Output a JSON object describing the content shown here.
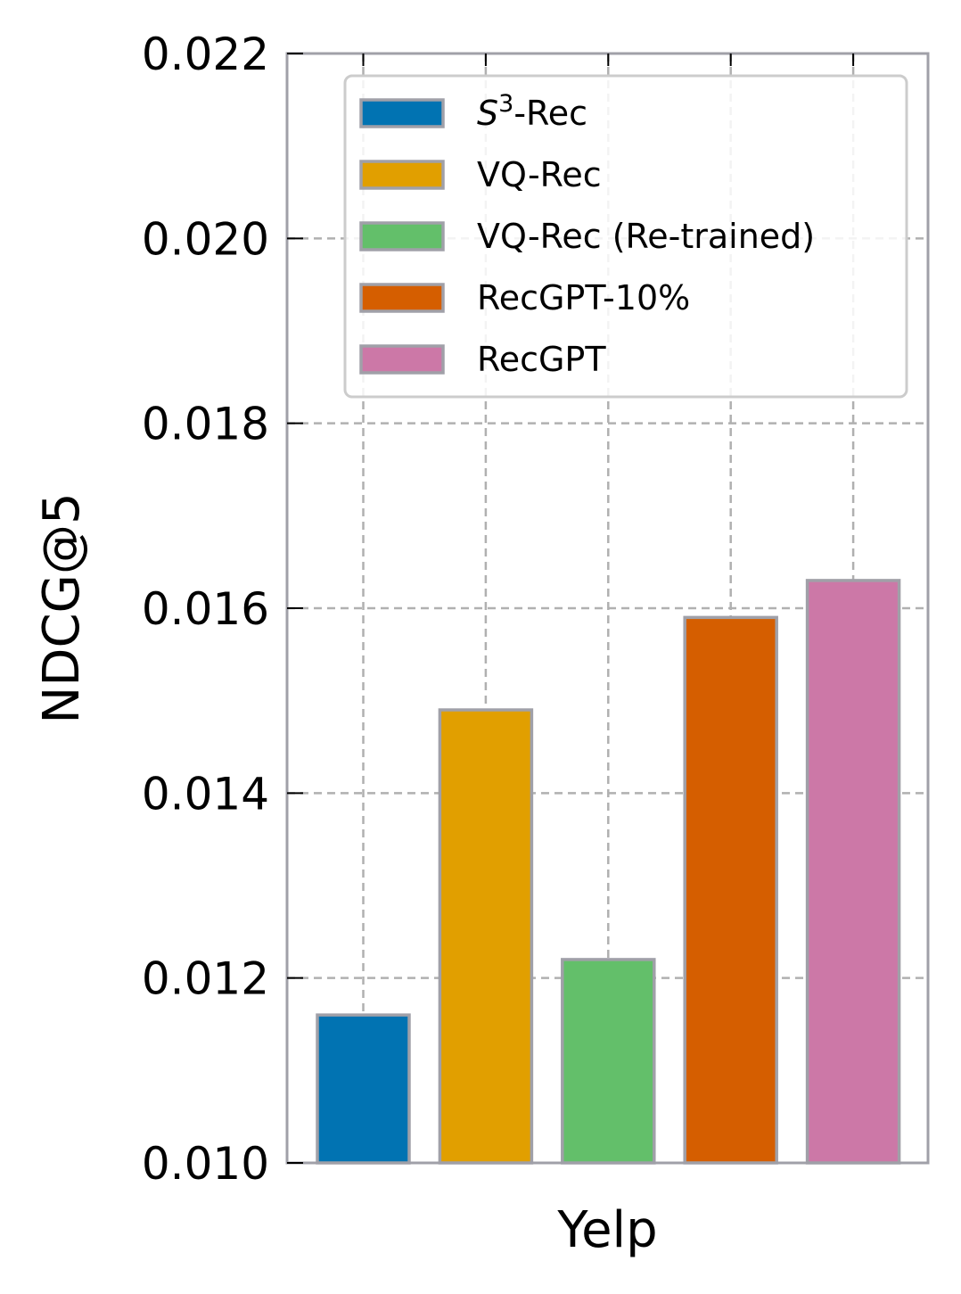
{
  "chart_data": {
    "type": "bar",
    "title": "",
    "xlabel": "Yelp",
    "ylabel": "NDCG@5",
    "ylim": [
      0.01,
      0.022
    ],
    "yticks": [
      "0.010",
      "0.012",
      "0.014",
      "0.016",
      "0.018",
      "0.020",
      "0.022"
    ],
    "grid": true,
    "legend_position": "top-right",
    "series": [
      {
        "name": "S3-Rec",
        "legend_base": "S",
        "legend_sup": "3",
        "legend_suffix": "-Rec",
        "value": 0.0116,
        "color": "#0173b2"
      },
      {
        "name": "VQ-Rec",
        "value": 0.0149,
        "color": "#e19f00"
      },
      {
        "name": "VQ-Rec (Re-trained)",
        "value": 0.0122,
        "color": "#63bf6a"
      },
      {
        "name": "RecGPT-10%",
        "value": 0.0159,
        "color": "#d55e00"
      },
      {
        "name": "RecGPT",
        "value": 0.0163,
        "color": "#cc78a7"
      }
    ],
    "edge_color": "#a0a0a8",
    "grid_color": "#b0b0b0"
  }
}
